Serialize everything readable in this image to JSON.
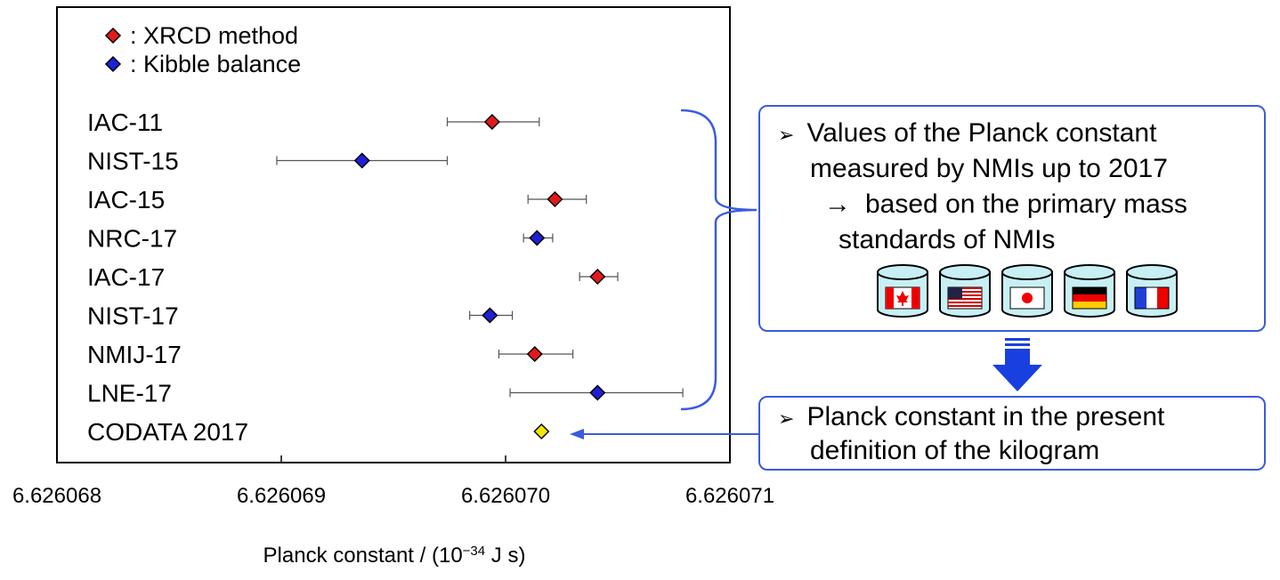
{
  "chart_data": {
    "type": "scatter",
    "title": "",
    "xlabel_main": "Planck constant / (10",
    "xlabel_exp": "−34",
    "xlabel_unit": " J s)",
    "xlim": [
      6.626068,
      6.626071
    ],
    "xticks": [
      "6.626068",
      "6.626069",
      "6.626070",
      "6.626071"
    ],
    "legend": [
      {
        "label": ": XRCD method",
        "color": "#e31a1c"
      },
      {
        "label": ": Kibble balance",
        "color": "#1f1fd6"
      }
    ],
    "points": [
      {
        "label": "IAC-11",
        "method": "XRCD",
        "value": 6.62606994,
        "err_low": 6.62606974,
        "err_high": 6.62607015,
        "color": "#e31a1c"
      },
      {
        "label": "NIST-15",
        "method": "Kibble",
        "value": 6.62606936,
        "err_low": 6.62606898,
        "err_high": 6.62606974,
        "color": "#1f1fd6"
      },
      {
        "label": "IAC-15",
        "method": "XRCD",
        "value": 6.62607022,
        "err_low": 6.6260701,
        "err_high": 6.62607036,
        "color": "#e31a1c"
      },
      {
        "label": "NRC-17",
        "method": "Kibble",
        "value": 6.62607014,
        "err_low": 6.62607008,
        "err_high": 6.62607021,
        "color": "#1f1fd6"
      },
      {
        "label": "IAC-17",
        "method": "XRCD",
        "value": 6.62607041,
        "err_low": 6.62607033,
        "err_high": 6.6260705,
        "color": "#e31a1c"
      },
      {
        "label": "NIST-17",
        "method": "Kibble",
        "value": 6.62606993,
        "err_low": 6.62606984,
        "err_high": 6.62607003,
        "color": "#1f1fd6"
      },
      {
        "label": "NMIJ-17",
        "method": "XRCD",
        "value": 6.62607013,
        "err_low": 6.62606997,
        "err_high": 6.6260703,
        "color": "#e31a1c"
      },
      {
        "label": "LNE-17",
        "method": "Kibble",
        "value": 6.62607041,
        "err_low": 6.62607002,
        "err_high": 6.62607079,
        "color": "#1f1fd6"
      },
      {
        "label": "CODATA 2017",
        "method": "CODATA",
        "value": 6.62607016,
        "err_low": null,
        "err_high": null,
        "color": "#f2e600"
      }
    ]
  },
  "info_box": {
    "bullet": "➢",
    "line1": "Values of the Planck constant",
    "line2": "measured by NMIs up to 2017",
    "arrow": "→",
    "line3": "based on the primary mass",
    "line4": "standards of NMIs",
    "flags": [
      "canada-flag",
      "usa-flag",
      "japan-flag",
      "germany-flag",
      "france-flag"
    ]
  },
  "definition_box": {
    "bullet": "➢",
    "line1": "Planck constant in the present",
    "line2": "definition of the kilogram"
  },
  "colors": {
    "accent_blue": "#3b5be0",
    "arrow_blue": "#1a3fe0",
    "xrcd_red": "#e31a1c",
    "kibble_blue": "#1f1fd6",
    "codata_yellow": "#f2e600",
    "cylinder_fill": "#c8f0f4"
  }
}
